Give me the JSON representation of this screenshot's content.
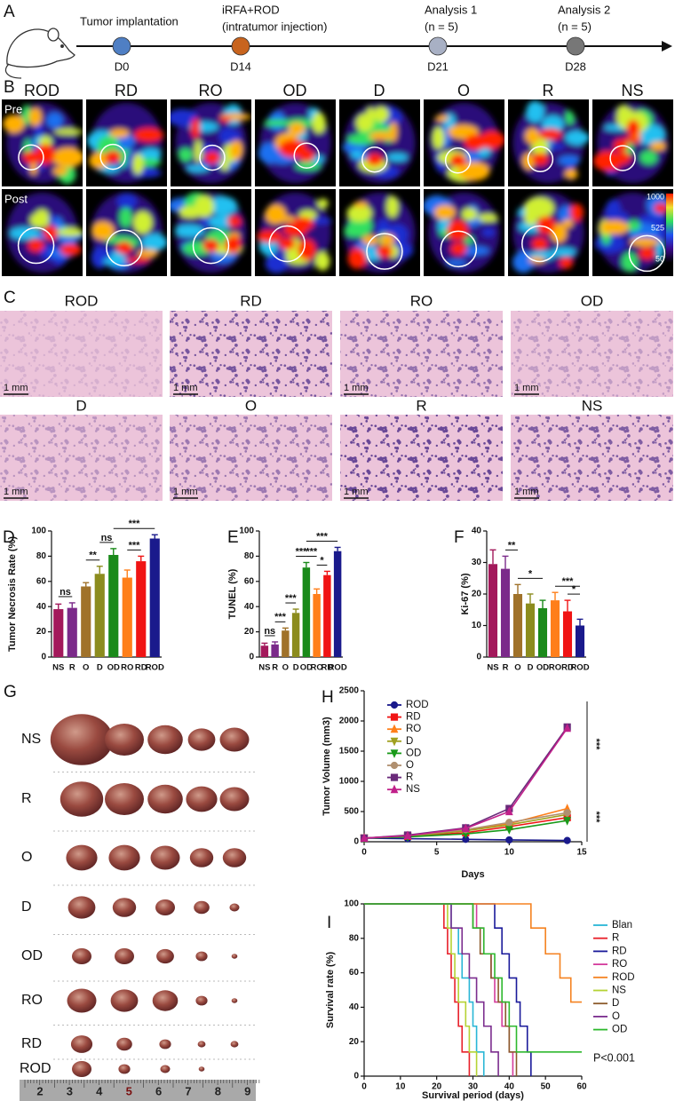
{
  "timeline": {
    "panel": "A",
    "events": [
      {
        "title": [
          "Tumor implantation"
        ],
        "day": "D0",
        "color": "#4f7fc4"
      },
      {
        "title": [
          "iRFA+ROD",
          "(intratumor injection)"
        ],
        "day": "D14",
        "color": "#c8641e"
      },
      {
        "title": [
          "Analysis 1",
          "(n = 5)"
        ],
        "day": "D21",
        "color": "#a8b0c4"
      },
      {
        "title": [
          "Analysis 2",
          "(n = 5)"
        ],
        "day": "D28",
        "color": "#777777"
      }
    ]
  },
  "imaging": {
    "panel": "B",
    "groups": [
      "ROD",
      "RD",
      "RO",
      "OD",
      "D",
      "O",
      "R",
      "NS"
    ],
    "phases": [
      "Pre",
      "Post"
    ],
    "colorbar": [
      "1000",
      "525",
      "50"
    ]
  },
  "histology": {
    "panel": "C",
    "rows": [
      [
        "ROD",
        "RD",
        "RO",
        "OD"
      ],
      [
        "D",
        "O",
        "R",
        "NS"
      ]
    ],
    "scale": "1 mm"
  },
  "photo": {
    "panel": "G",
    "rows": [
      "NS",
      "R",
      "O",
      "D",
      "OD",
      "RO",
      "RD",
      "ROD"
    ],
    "ruler": [
      "2",
      "3",
      "4",
      "5",
      "6",
      "7",
      "8",
      "9"
    ]
  },
  "chart_data": [
    {
      "type": "bar",
      "panel": "D",
      "ylabel": "Tumor Necrosis Rate (%)",
      "categories": [
        "NS",
        "R",
        "O",
        "D",
        "OD",
        "RO",
        "RD",
        "ROD"
      ],
      "values": [
        38,
        39,
        56,
        66,
        81,
        63,
        76,
        94
      ],
      "errors": [
        4,
        4,
        3,
        6,
        5,
        6,
        4,
        3
      ],
      "colors": [
        "#a3195b",
        "#7b2a8a",
        "#a0722a",
        "#8c8c1e",
        "#1a8a1a",
        "#ff7f1a",
        "#f01414",
        "#1a1a8c"
      ],
      "ylim": [
        0,
        100
      ],
      "yticks": [
        0,
        20,
        40,
        60,
        80,
        100
      ],
      "annotations": [
        {
          "text": "ns",
          "from": "NS",
          "to": "R"
        },
        {
          "text": "**",
          "from": "O",
          "to": "D"
        },
        {
          "text": "ns",
          "from": "D",
          "to": "OD"
        },
        {
          "text": "***",
          "from": "RO",
          "to": "RD"
        },
        {
          "text": "***",
          "from": "OD",
          "to": "ROD"
        }
      ]
    },
    {
      "type": "bar",
      "panel": "E",
      "ylabel": "TUNEL (%)",
      "categories": [
        "NS",
        "R",
        "O",
        "D",
        "OD",
        "RO",
        "RD",
        "ROD"
      ],
      "values": [
        9,
        10,
        21,
        35,
        71,
        50,
        65,
        84
      ],
      "errors": [
        2,
        2,
        2,
        3,
        4,
        4,
        3,
        3
      ],
      "colors": [
        "#a3195b",
        "#7b2a8a",
        "#a0722a",
        "#8c8c1e",
        "#1a8a1a",
        "#ff7f1a",
        "#f01414",
        "#1a1a8c"
      ],
      "ylim": [
        0,
        100
      ],
      "yticks": [
        0,
        20,
        40,
        60,
        80,
        100
      ],
      "annotations": [
        {
          "text": "ns",
          "from": "NS",
          "to": "R"
        },
        {
          "text": "***",
          "from": "R",
          "to": "O"
        },
        {
          "text": "***",
          "from": "O",
          "to": "D"
        },
        {
          "text": "***",
          "from": "D",
          "to": "OD"
        },
        {
          "text": "***",
          "from": "OD",
          "to": "RO"
        },
        {
          "text": "*",
          "from": "RO",
          "to": "RD"
        },
        {
          "text": "***",
          "from": "OD",
          "to": "ROD"
        }
      ]
    },
    {
      "type": "bar",
      "panel": "F",
      "ylabel": "Ki-67 (%)",
      "categories": [
        "NS",
        "R",
        "O",
        "D",
        "OD",
        "RO",
        "RD",
        "ROD"
      ],
      "values": [
        29.5,
        28,
        20,
        17,
        15.5,
        18,
        14.5,
        10
      ],
      "errors": [
        4.5,
        4,
        3,
        3,
        2.5,
        2.5,
        3.5,
        2
      ],
      "colors": [
        "#a3195b",
        "#7b2a8a",
        "#a0722a",
        "#8c8c1e",
        "#1a8a1a",
        "#ff7f1a",
        "#f01414",
        "#1a1a8c"
      ],
      "ylim": [
        0,
        40
      ],
      "yticks": [
        0,
        10,
        20,
        30,
        40
      ],
      "annotations": [
        {
          "text": "**",
          "from": "R",
          "to": "O"
        },
        {
          "text": "*",
          "from": "O",
          "to": "OD"
        },
        {
          "text": "***",
          "from": "RO",
          "to": "ROD"
        },
        {
          "text": "*",
          "from": "RD",
          "to": "ROD"
        }
      ]
    },
    {
      "type": "line",
      "panel": "H",
      "xlabel": "Days",
      "ylabel": "Tumor Volume (mm3)",
      "x": [
        0,
        3,
        7,
        10,
        14
      ],
      "xlim": [
        0,
        15
      ],
      "xticks": [
        0,
        5,
        10,
        15
      ],
      "ylim": [
        0,
        2500
      ],
      "yticks": [
        0,
        500,
        1000,
        1500,
        2000,
        2500
      ],
      "series": [
        {
          "name": "ROD",
          "color": "#1a1a8c",
          "marker": "circle",
          "values": [
            60,
            50,
            40,
            30,
            20
          ]
        },
        {
          "name": "RD",
          "color": "#f01414",
          "marker": "square",
          "values": [
            60,
            90,
            150,
            250,
            400
          ]
        },
        {
          "name": "RO",
          "color": "#ff7f1a",
          "marker": "triangle",
          "values": [
            60,
            100,
            200,
            300,
            550
          ]
        },
        {
          "name": "D",
          "color": "#a0a020",
          "marker": "triangle-down",
          "values": [
            60,
            90,
            180,
            280,
            450
          ]
        },
        {
          "name": "OD",
          "color": "#1a9a1a",
          "marker": "triangle-down",
          "values": [
            60,
            80,
            130,
            200,
            350
          ]
        },
        {
          "name": "O",
          "color": "#b09070",
          "marker": "circle",
          "values": [
            60,
            100,
            200,
            320,
            480
          ]
        },
        {
          "name": "R",
          "color": "#6a2a7a",
          "marker": "square",
          "values": [
            60,
            110,
            230,
            550,
            1900
          ]
        },
        {
          "name": "NS",
          "color": "#c0208a",
          "marker": "triangle",
          "values": [
            60,
            100,
            220,
            500,
            1880
          ]
        }
      ],
      "annotations": [
        "***",
        "***"
      ]
    },
    {
      "type": "line",
      "panel": "I",
      "xlabel": "Survival period (days)",
      "ylabel": "Survival rate (%)",
      "note": "P<0.001",
      "xlim": [
        0,
        60
      ],
      "xticks": [
        0,
        10,
        20,
        30,
        40,
        50,
        60
      ],
      "ylim": [
        0,
        100
      ],
      "yticks": [
        0,
        20,
        40,
        60,
        80,
        100
      ],
      "series": [
        {
          "name": "Blan",
          "color": "#29b6d6",
          "x": [
            0,
            24,
            24,
            26,
            26,
            27,
            27,
            29,
            29,
            30,
            30,
            31,
            31,
            33,
            33
          ],
          "values": [
            100,
            100,
            86,
            86,
            71,
            71,
            57,
            57,
            43,
            43,
            29,
            29,
            14,
            14,
            0
          ]
        },
        {
          "name": "R",
          "color": "#e8202a",
          "x": [
            0,
            22,
            22,
            23,
            23,
            24,
            24,
            25,
            25,
            26,
            26,
            27,
            27,
            29,
            29
          ],
          "values": [
            100,
            100,
            86,
            86,
            71,
            71,
            57,
            57,
            43,
            43,
            29,
            29,
            14,
            14,
            0
          ]
        },
        {
          "name": "RD",
          "color": "#1a1a9a",
          "x": [
            0,
            36,
            36,
            38,
            38,
            40,
            40,
            42,
            42,
            43,
            43,
            45,
            45,
            46,
            46
          ],
          "values": [
            100,
            100,
            86,
            86,
            71,
            71,
            57,
            57,
            43,
            43,
            29,
            29,
            14,
            14,
            0
          ]
        },
        {
          "name": "RO",
          "color": "#d43c9c",
          "x": [
            0,
            31,
            31,
            33,
            33,
            35,
            35,
            36,
            36,
            38,
            38,
            40,
            40,
            41,
            41
          ],
          "values": [
            100,
            100,
            86,
            86,
            71,
            71,
            57,
            57,
            43,
            43,
            29,
            29,
            14,
            14,
            0
          ]
        },
        {
          "name": "ROD",
          "color": "#f58220",
          "x": [
            0,
            46,
            46,
            50,
            50,
            54,
            54,
            57,
            57,
            60
          ],
          "values": [
            100,
            100,
            86,
            86,
            71,
            71,
            57,
            57,
            43,
            43
          ]
        },
        {
          "name": "NS",
          "color": "#b5d334",
          "x": [
            0,
            23,
            23,
            24,
            24,
            25,
            25,
            26,
            26,
            28,
            28,
            29,
            29,
            31,
            31
          ],
          "values": [
            100,
            100,
            86,
            86,
            71,
            71,
            57,
            57,
            43,
            43,
            29,
            29,
            14,
            14,
            0
          ]
        },
        {
          "name": "D",
          "color": "#8b5a2b",
          "x": [
            0,
            30,
            30,
            32,
            32,
            35,
            35,
            37,
            37,
            39,
            39,
            40,
            40,
            42,
            42
          ],
          "values": [
            100,
            100,
            86,
            86,
            71,
            71,
            57,
            57,
            43,
            43,
            29,
            29,
            14,
            14,
            0
          ]
        },
        {
          "name": "O",
          "color": "#7b2d8e",
          "x": [
            0,
            24,
            24,
            27,
            27,
            29,
            29,
            31,
            31,
            33,
            33,
            35,
            35,
            37,
            37
          ],
          "values": [
            100,
            100,
            86,
            86,
            71,
            71,
            57,
            57,
            43,
            43,
            29,
            29,
            14,
            14,
            0
          ]
        },
        {
          "name": "OD",
          "color": "#2eb82e",
          "x": [
            0,
            30,
            30,
            33,
            33,
            36,
            36,
            38,
            38,
            40,
            40,
            42,
            42,
            60
          ],
          "values": [
            100,
            100,
            86,
            86,
            71,
            71,
            57,
            57,
            43,
            43,
            29,
            29,
            14,
            14
          ]
        }
      ]
    }
  ]
}
